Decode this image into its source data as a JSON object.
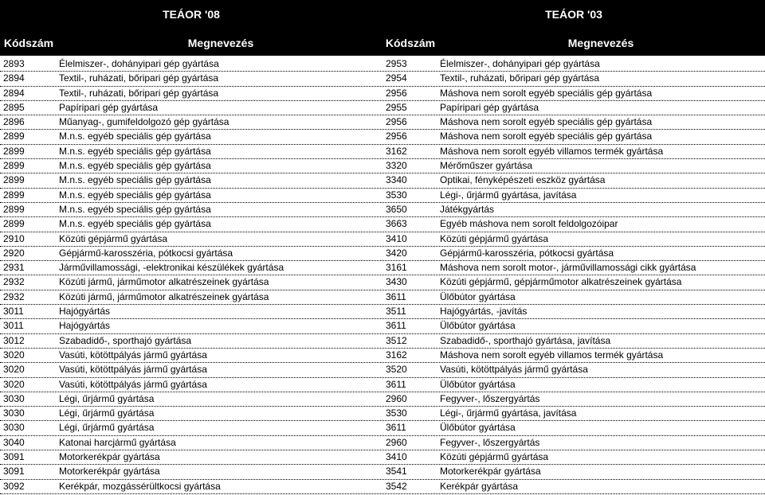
{
  "header": {
    "left_title": "TEÁOR '08",
    "right_title": "TEÁOR '03",
    "col_code_left": "Kódszám",
    "col_name_left": "Megnevezés",
    "col_code_right": "Kódszám",
    "col_name_right": "Megnevezés"
  },
  "rows": [
    [
      "2893",
      "Élelmiszer-, dohányipari gép gyártása",
      "2953",
      "Élelmiszer-, dohányipari gép gyártása"
    ],
    [
      "2894",
      "Textil-, ruházati, bőripari gép gyártása",
      "2954",
      "Textil-, ruházati, bőripari gép gyártása"
    ],
    [
      "2894",
      "Textil-, ruházati, bőripari gép gyártása",
      "2956",
      "Máshova nem sorolt egyéb speciális gép gyártása"
    ],
    [
      "2895",
      "Papíripari gép gyártása",
      "2955",
      "Papíripari gép gyártása"
    ],
    [
      "2896",
      "Műanyag-, gumifeldolgozó gép gyártása",
      "2956",
      "Máshova nem sorolt egyéb speciális gép gyártása"
    ],
    [
      "2899",
      "M.n.s. egyéb speciális gép gyártása",
      "2956",
      "Máshova nem sorolt egyéb speciális gép gyártása"
    ],
    [
      "2899",
      "M.n.s. egyéb speciális gép gyártása",
      "3162",
      "Máshova nem sorolt egyéb villamos termék gyártása"
    ],
    [
      "2899",
      "M.n.s. egyéb speciális gép gyártása",
      "3320",
      "Mérőműszer gyártása"
    ],
    [
      "2899",
      "M.n.s. egyéb speciális gép gyártása",
      "3340",
      "Optikai, fényképészeti eszköz gyártása"
    ],
    [
      "2899",
      "M.n.s. egyéb speciális gép gyártása",
      "3530",
      "Légi-, űrjármű gyártása, javítása"
    ],
    [
      "2899",
      "M.n.s. egyéb speciális gép gyártása",
      "3650",
      "Játékgyártás"
    ],
    [
      "2899",
      "M.n.s. egyéb speciális gép gyártása",
      "3663",
      "Egyéb máshova nem sorolt  feldolgozóipar"
    ],
    [
      "2910",
      "Közúti gépjármű gyártása",
      "3410",
      "Közúti gépjármű gyártása"
    ],
    [
      "2920",
      "Gépjármű-karosszéria, pótkocsi gyártása",
      "3420",
      "Gépjármű-karosszéria, pótkocsi gyártása"
    ],
    [
      "2931",
      "Járművillamossági, -elektronikai készülékek gyártása",
      "3161",
      "Máshova nem sorolt motor-, járművillamossági cikk gyártása"
    ],
    [
      "2932",
      "Közúti jármű, járműmotor alkatrészeinek gyártása",
      "3430",
      "Közúti gépjármű, gépjárműmotor alkatrészeinek gyártása"
    ],
    [
      "2932",
      "Közúti jármű, járműmotor alkatrészeinek gyártása",
      "3611",
      "Ülőbútor gyártása"
    ],
    [
      "3011",
      "Hajógyártás",
      "3511",
      "Hajógyártás, -javítás"
    ],
    [
      "3011",
      "Hajógyártás",
      "3611",
      "Ülőbútor gyártása"
    ],
    [
      "3012",
      "Szabadidő-, sporthajó gyártása",
      "3512",
      "Szabadidő-, sporthajó gyártása, javítása"
    ],
    [
      "3020",
      "Vasúti, kötöttpályás jármű gyártása",
      "3162",
      "Máshova nem sorolt egyéb villamos termék gyártása"
    ],
    [
      "3020",
      "Vasúti, kötöttpályás jármű gyártása",
      "3520",
      "Vasúti, kötöttpályás jármű gyártása"
    ],
    [
      "3020",
      "Vasúti, kötöttpályás jármű gyártása",
      "3611",
      "Ülőbútor gyártása"
    ],
    [
      "3030",
      "Légi, űrjármű gyártása",
      "2960",
      "Fegyver-, lőszergyártás"
    ],
    [
      "3030",
      "Légi, űrjármű gyártása",
      "3530",
      "Légi-, űrjármű gyártása, javítása"
    ],
    [
      "3030",
      "Légi, űrjármű gyártása",
      "3611",
      "Ülőbútor gyártása"
    ],
    [
      "3040",
      "Katonai harcjármű gyártása",
      "2960",
      "Fegyver-, lőszergyártás"
    ],
    [
      "3091",
      "Motorkerékpár gyártása",
      "3410",
      "Közúti gépjármű gyártása"
    ],
    [
      "3091",
      "Motorkerékpár gyártása",
      "3541",
      "Motorkerékpár gyártása"
    ],
    [
      "3092",
      "Kerékpár, mozgássérültkocsi gyártása",
      "3542",
      "Kerékpár gyártása"
    ]
  ]
}
